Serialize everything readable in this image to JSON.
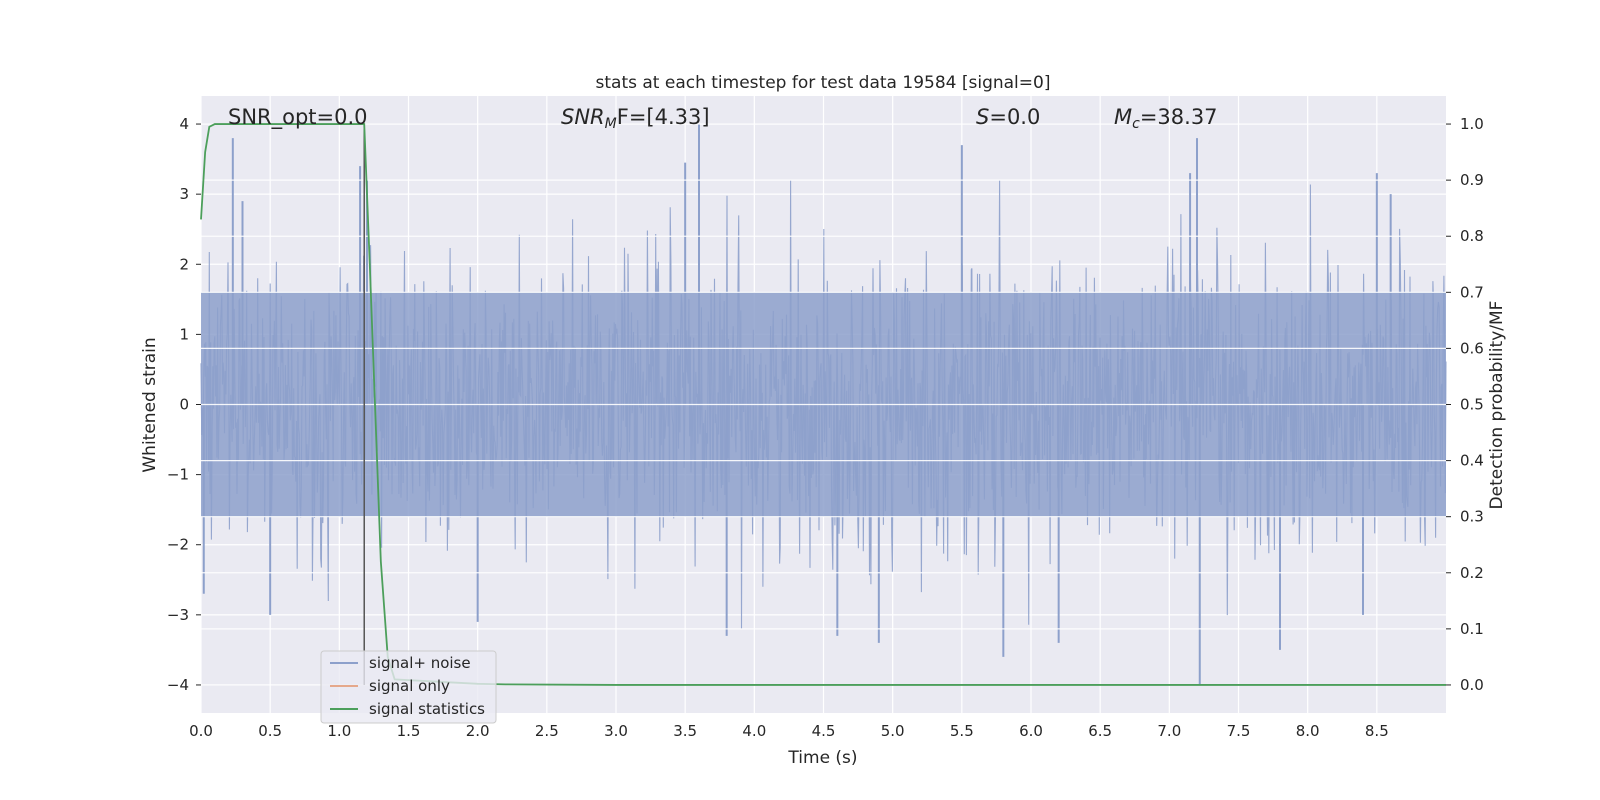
{
  "chart_data": {
    "type": "line",
    "title": "stats at each timestep for test data 19584 [signal=0]",
    "xlabel": "Time (s)",
    "ylabel_left": "Whitened strain",
    "ylabel_right": "Detection probability/MF",
    "xlim": [
      0.0,
      9.0
    ],
    "ylim_left": [
      -4.4,
      4.4
    ],
    "ylim_right": [
      -0.05,
      1.05
    ],
    "xticks": [
      "0.0",
      "0.5",
      "1.0",
      "1.5",
      "2.0",
      "2.5",
      "3.0",
      "3.5",
      "4.0",
      "4.5",
      "5.0",
      "5.5",
      "6.0",
      "6.5",
      "7.0",
      "7.5",
      "8.0",
      "8.5"
    ],
    "xtick_values": [
      0.0,
      0.5,
      1.0,
      1.5,
      2.0,
      2.5,
      3.0,
      3.5,
      4.0,
      4.5,
      5.0,
      5.5,
      6.0,
      6.5,
      7.0,
      7.5,
      8.0,
      8.5
    ],
    "yticks_left": [
      "4",
      "3",
      "2",
      "1",
      "0",
      "−1",
      "−2",
      "−3",
      "−4"
    ],
    "ytick_values_left": [
      4,
      3,
      2,
      1,
      0,
      -1,
      -2,
      -3,
      -4
    ],
    "yticks_right": [
      "1.0",
      "0.9",
      "0.8",
      "0.7",
      "0.6",
      "0.5",
      "0.4",
      "0.3",
      "0.2",
      "0.1",
      "0.0"
    ],
    "ytick_values_right": [
      1.0,
      0.9,
      0.8,
      0.7,
      0.6,
      0.5,
      0.4,
      0.3,
      0.2,
      0.1,
      0.0
    ],
    "grid": true,
    "legend_position": "bottom-left",
    "annotations": {
      "snr_opt": "SNR_opt=0.0",
      "snr_mf_main": "SNR",
      "snr_mf_sub": "M",
      "snr_mf_rest": "F=[4.33]",
      "s_main": "S",
      "s_rest": "=0.0",
      "mc_main": "M",
      "mc_sub": "c",
      "mc_rest": "=38.37"
    },
    "vertical_line_x": 1.18,
    "series": [
      {
        "name": "signal+ noise",
        "color": "#8da0cb",
        "axis": "left",
        "description_envelope_upper_typical": 2.0,
        "description_envelope_lower_typical": -2.0,
        "peaks": [
          [
            0.23,
            3.8
          ],
          [
            0.3,
            2.9
          ],
          [
            1.15,
            3.4
          ],
          [
            1.2,
            3.2
          ],
          [
            3.6,
            4.0
          ],
          [
            3.5,
            3.45
          ],
          [
            5.5,
            3.7
          ],
          [
            7.2,
            3.8
          ],
          [
            7.15,
            3.3
          ],
          [
            8.5,
            3.3
          ],
          [
            8.6,
            3.0
          ]
        ],
        "troughs": [
          [
            0.02,
            -2.7
          ],
          [
            0.5,
            -3.0
          ],
          [
            2.0,
            -3.1
          ],
          [
            3.8,
            -3.3
          ],
          [
            4.6,
            -3.3
          ],
          [
            4.9,
            -3.4
          ],
          [
            5.8,
            -3.6
          ],
          [
            6.2,
            -3.4
          ],
          [
            7.22,
            -4.0
          ],
          [
            7.8,
            -3.5
          ],
          [
            8.4,
            -3.0
          ]
        ]
      },
      {
        "name": "signal only",
        "color": "#e5a88b",
        "axis": "left",
        "x": [
          0.0,
          9.0
        ],
        "y": [
          0.0,
          0.0
        ]
      },
      {
        "name": "signal statistics",
        "color": "#4c9f5b",
        "axis": "right",
        "x": [
          0.0,
          0.03,
          0.06,
          0.1,
          0.5,
          1.0,
          1.18,
          1.22,
          1.3,
          1.35,
          1.4,
          2.0,
          2.2,
          3.0,
          5.0,
          7.0,
          9.0
        ],
        "y": [
          0.83,
          0.95,
          0.995,
          1.0,
          1.0,
          1.0,
          1.0,
          0.75,
          0.22,
          0.05,
          0.01,
          0.002,
          0.001,
          0.0,
          0.0,
          0.0,
          0.0
        ]
      }
    ]
  }
}
